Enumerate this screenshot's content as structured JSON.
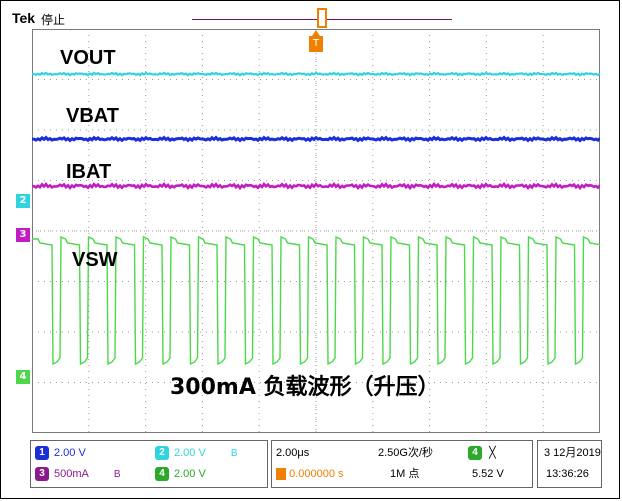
{
  "header": {
    "brand": "Tek",
    "run_state": "停止",
    "trigger_position_label": "T"
  },
  "waveform_labels": {
    "vout": "VOUT",
    "vbat": "VBAT",
    "ibat": "IBAT",
    "vsw": "VSW"
  },
  "caption": "300mA 负载波形（升压）",
  "channel_markers": {
    "ch2": "2",
    "ch3": "3",
    "ch4": "4"
  },
  "colors": {
    "ch1": "#1a2fd6",
    "ch2": "#2fd4de",
    "ch3": "#c21cc4",
    "ch4": "#4cd84a",
    "trigger": "#f08000",
    "grid": "#9a9a9a"
  },
  "channels": {
    "ch1": {
      "num": "1",
      "scale": "2.00 V"
    },
    "ch2": {
      "num": "2",
      "scale": "2.00 V"
    },
    "ch3": {
      "num": "3",
      "scale": "500mA"
    },
    "ch4": {
      "num": "4",
      "scale": "2.00 V"
    },
    "bw_symbol": "B"
  },
  "timebase": {
    "time_div": "2.00μs",
    "sample_rate": "2.50G次/秒",
    "record_length": "1M 点",
    "trigger_delay": "0.000000 s",
    "trigger_channel": "4",
    "trigger_level": "5.52 V",
    "trigger_slope_symbol": "╳"
  },
  "datetime": {
    "date": "3 12月2019",
    "time": "13:36:26"
  }
}
